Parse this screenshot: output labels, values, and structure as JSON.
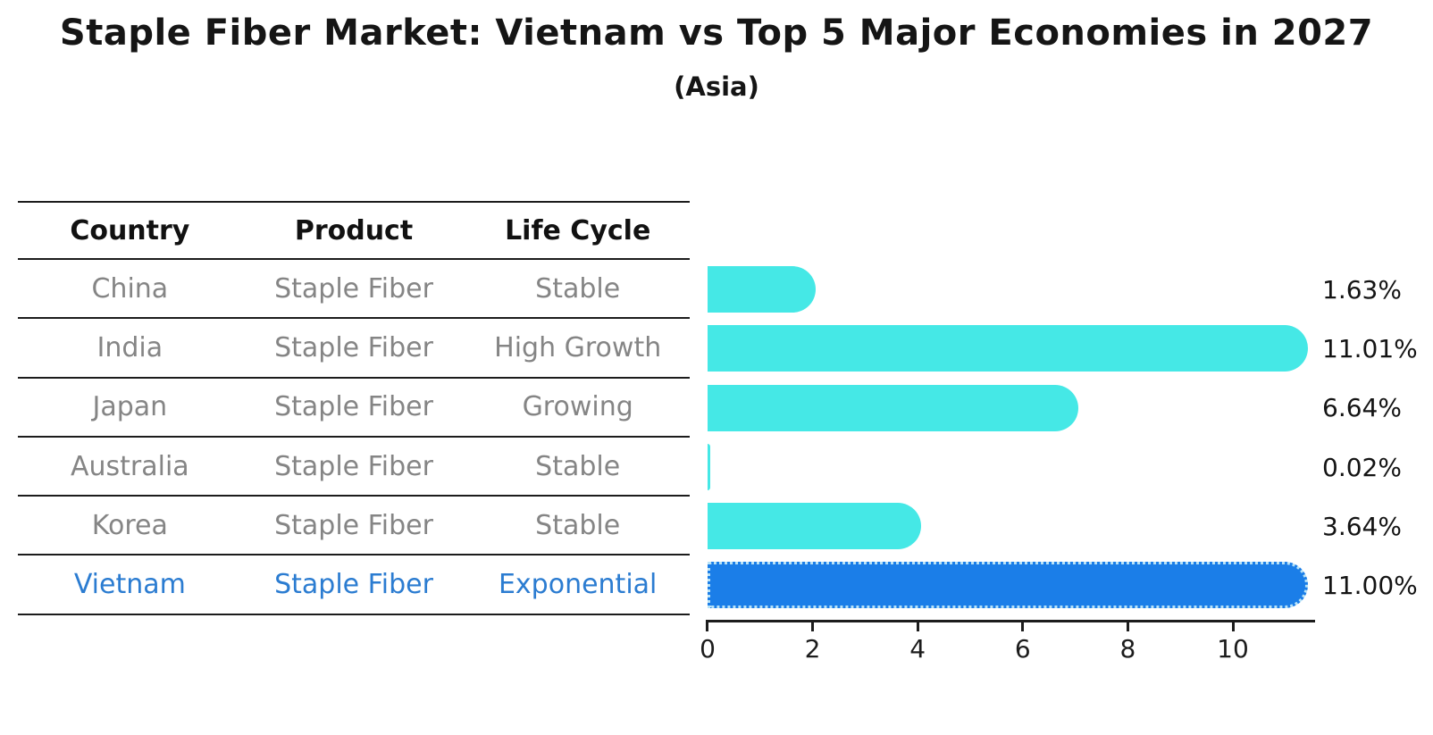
{
  "title": "Staple Fiber Market: Vietnam vs Top 5 Major Economies in 2027",
  "subtitle": "(Asia)",
  "table": {
    "headers": [
      "Country",
      "Product",
      "Life Cycle"
    ],
    "rows": [
      {
        "country": "China",
        "product": "Staple Fiber",
        "life_cycle": "Stable"
      },
      {
        "country": "India",
        "product": "Staple Fiber",
        "life_cycle": "High Growth"
      },
      {
        "country": "Japan",
        "product": "Staple Fiber",
        "life_cycle": "Growing"
      },
      {
        "country": "Australia",
        "product": "Staple Fiber",
        "life_cycle": "Stable"
      },
      {
        "country": "Korea",
        "product": "Staple Fiber",
        "life_cycle": "Stable"
      },
      {
        "country": "Vietnam",
        "product": "Staple Fiber",
        "life_cycle": "Exponential"
      }
    ],
    "highlight_row": "Vietnam"
  },
  "chart_data": {
    "type": "bar",
    "orientation": "horizontal",
    "title": "Staple Fiber Market: Vietnam vs Top 5 Major Economies in 2027",
    "subtitle": "(Asia)",
    "categories": [
      "China",
      "India",
      "Japan",
      "Australia",
      "Korea",
      "Vietnam"
    ],
    "values": [
      1.63,
      11.01,
      6.64,
      0.02,
      3.64,
      11.0
    ],
    "value_labels": [
      "1.63%",
      "11.01%",
      "6.64%",
      "0.02%",
      "3.64%",
      "11.00%"
    ],
    "xlabel": "",
    "ylabel": "",
    "xlim": [
      0,
      11.5
    ],
    "xticks": [
      "0",
      "2",
      "4",
      "6",
      "8",
      "10"
    ],
    "grid": false,
    "legend": false,
    "highlight_index": 5,
    "colors": {
      "default_bar": "#45e8e6",
      "highlight_bar": "#1b7ee8",
      "highlight_border": "#b9e3f7",
      "muted_text": "#858585",
      "accent_text": "#2b7cd1",
      "axis": "#1c1c1c"
    }
  }
}
